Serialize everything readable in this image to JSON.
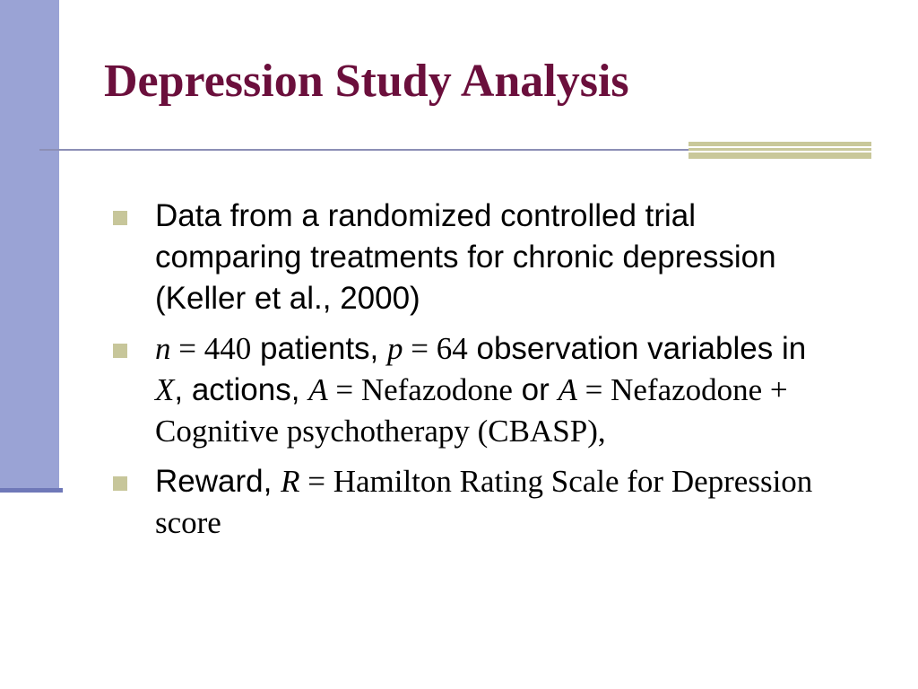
{
  "slide": {
    "title": "Depression Study Analysis",
    "bullet1": {
      "text": "Data from a randomized controlled trial comparing treatments for chronic depression (Keller et al., 2000)"
    },
    "bullet2": {
      "n_sym": "n",
      "n_val": " = 440",
      "t1": " patients, ",
      "p_sym": "p",
      "p_val": " = 64",
      "t2": " observation variables in ",
      "x_sym": "X",
      "t3": ", actions, ",
      "a1_sym": "A",
      "a1_val": " = Nefazodone",
      "t4": " or ",
      "a2_sym": "A",
      "a2_val": " = Nefazodone + Cognitive psychotherapy (CBASP),"
    },
    "bullet3": {
      "t1": "Reward, ",
      "r_sym": "R",
      "r_val": " = Hamilton Rating Scale for Depression score"
    }
  },
  "colors": {
    "title": "#6b0f3c",
    "side_bar": "#9aa3d5",
    "accent": "#c9c89a",
    "rule": "#8c8fb5"
  }
}
